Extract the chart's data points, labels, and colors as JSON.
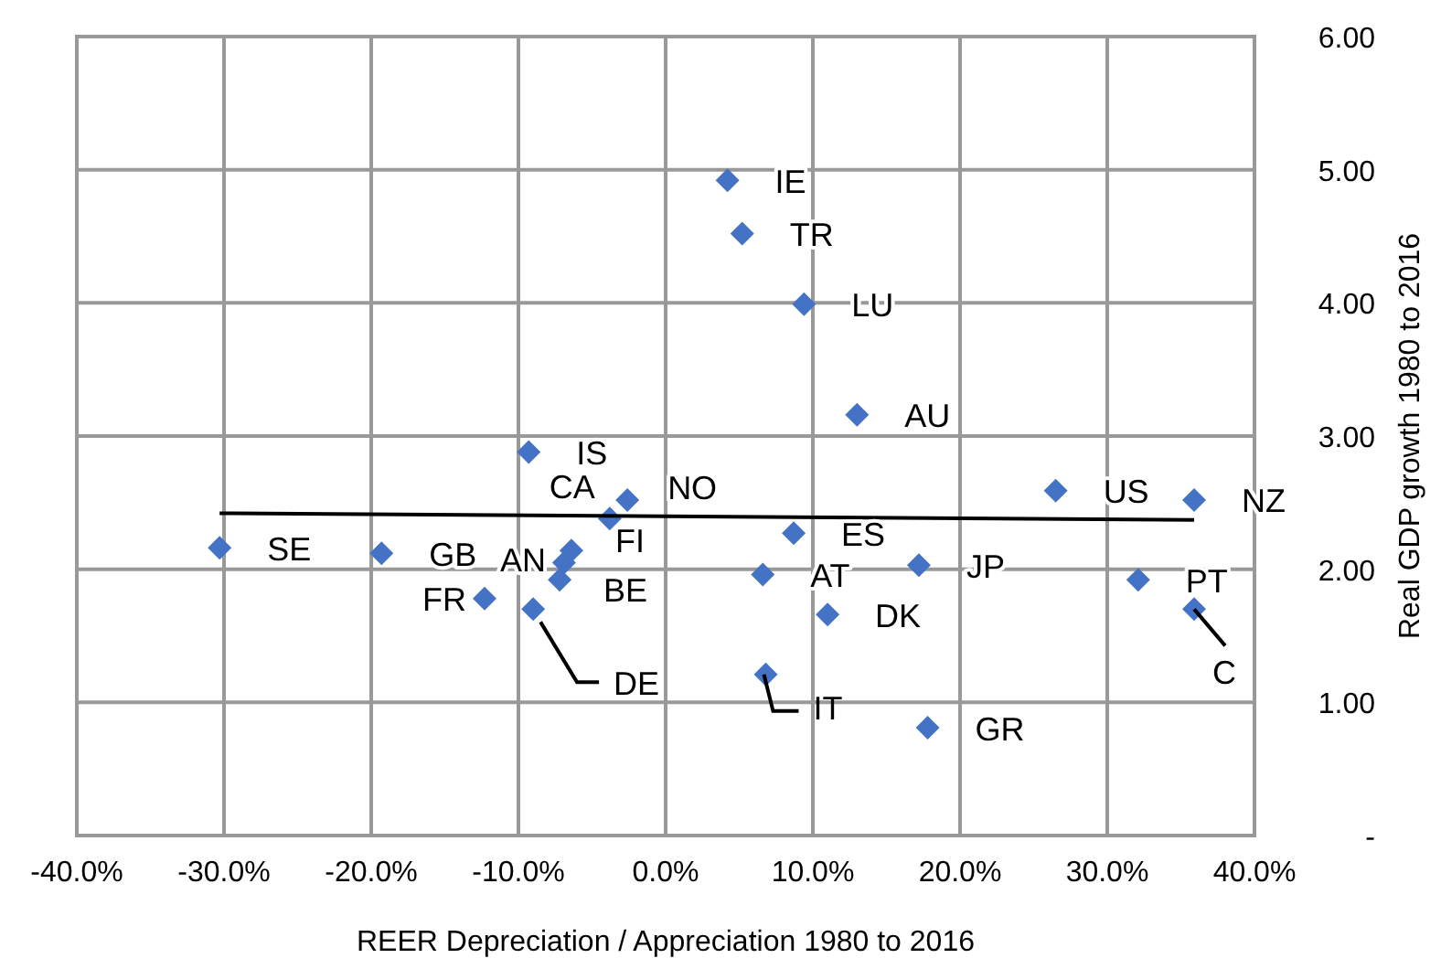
{
  "chart_data": {
    "type": "scatter",
    "xlabel": "REER Depreciation  / Appreciation  1980 to 2016",
    "ylabel": "Real GDP growth  1980 to 2016",
    "xlim": [
      -40,
      40
    ],
    "xticks": [
      {
        "value": -40,
        "label": "-40.0%"
      },
      {
        "value": -30,
        "label": "-30.0%"
      },
      {
        "value": -20,
        "label": "-20.0%"
      },
      {
        "value": -10,
        "label": "-10.0%"
      },
      {
        "value": 0,
        "label": "0.0%"
      },
      {
        "value": 10,
        "label": "10.0%"
      },
      {
        "value": 20,
        "label": "20.0%"
      },
      {
        "value": 30,
        "label": "30.0%"
      },
      {
        "value": 40,
        "label": "40.0%"
      }
    ],
    "ylim": [
      0,
      6
    ],
    "yticks": [
      {
        "value": 0,
        "label": "-"
      },
      {
        "value": 1,
        "label": "1.00"
      },
      {
        "value": 2,
        "label": "2.00"
      },
      {
        "value": 3,
        "label": "3.00"
      },
      {
        "value": 4,
        "label": "4.00"
      },
      {
        "value": 5,
        "label": "5.00"
      },
      {
        "value": 6,
        "label": "6.00"
      }
    ],
    "grid": true,
    "series": [
      {
        "marker": "diamond",
        "color": "#4472c4",
        "x": [
          -30.3,
          -19.3,
          -9.3,
          -12.3,
          -9.0,
          -6.4,
          -6.9,
          -7.2,
          -3.8,
          -2.6,
          4.2,
          5.2,
          9.4,
          13.0,
          8.7,
          6.6,
          17.2,
          11.0,
          6.8,
          17.8,
          26.5,
          35.9,
          32.1,
          35.9
        ],
        "values": [
          2.16,
          2.12,
          2.88,
          1.78,
          1.7,
          2.14,
          2.05,
          1.92,
          2.38,
          2.52,
          4.92,
          4.52,
          3.99,
          3.16,
          2.27,
          1.96,
          2.03,
          1.66,
          1.21,
          0.81,
          2.59,
          2.52,
          1.92,
          1.7
        ]
      },
      {
        "type": "line",
        "marker": "none",
        "color": "#000000",
        "line_style": "solid",
        "x": [
          -30.3,
          35.9
        ],
        "values": [
          2.42,
          2.37
        ]
      }
    ],
    "annotations": [
      {
        "text": "SE",
        "x": -30.3,
        "y": 2.16
      },
      {
        "text": "GB",
        "x": -19.3,
        "y": 2.12
      },
      {
        "text": "IS",
        "x": -9.3,
        "y": 2.88
      },
      {
        "text": "FR",
        "x": -12.3,
        "y": 1.78
      },
      {
        "text": "DE",
        "x": -9.0,
        "y": 1.7
      },
      {
        "text": "FI",
        "x": -6.4,
        "y": 2.14
      },
      {
        "text": "AN",
        "x": -6.9,
        "y": 2.05
      },
      {
        "text": "BE",
        "x": -7.2,
        "y": 1.92
      },
      {
        "text": "CA",
        "x": -3.8,
        "y": 2.38
      },
      {
        "text": "NO",
        "x": -2.6,
        "y": 2.52
      },
      {
        "text": "IE",
        "x": 4.2,
        "y": 4.92
      },
      {
        "text": "TR",
        "x": 5.2,
        "y": 4.52
      },
      {
        "text": "LU",
        "x": 9.4,
        "y": 3.99
      },
      {
        "text": "AU",
        "x": 13.0,
        "y": 3.16
      },
      {
        "text": "ES",
        "x": 8.7,
        "y": 2.27
      },
      {
        "text": "AT",
        "x": 6.6,
        "y": 1.96
      },
      {
        "text": "JP",
        "x": 17.2,
        "y": 2.03
      },
      {
        "text": "DK",
        "x": 11.0,
        "y": 1.66
      },
      {
        "text": "IT",
        "x": 6.8,
        "y": 1.21
      },
      {
        "text": "GR",
        "x": 17.8,
        "y": 0.81
      },
      {
        "text": "US",
        "x": 26.5,
        "y": 2.59
      },
      {
        "text": "NZ",
        "x": 35.9,
        "y": 2.52
      },
      {
        "text": "PT",
        "x": 32.1,
        "y": 1.92
      },
      {
        "text": "C",
        "x": 35.9,
        "y": 1.7
      }
    ]
  }
}
